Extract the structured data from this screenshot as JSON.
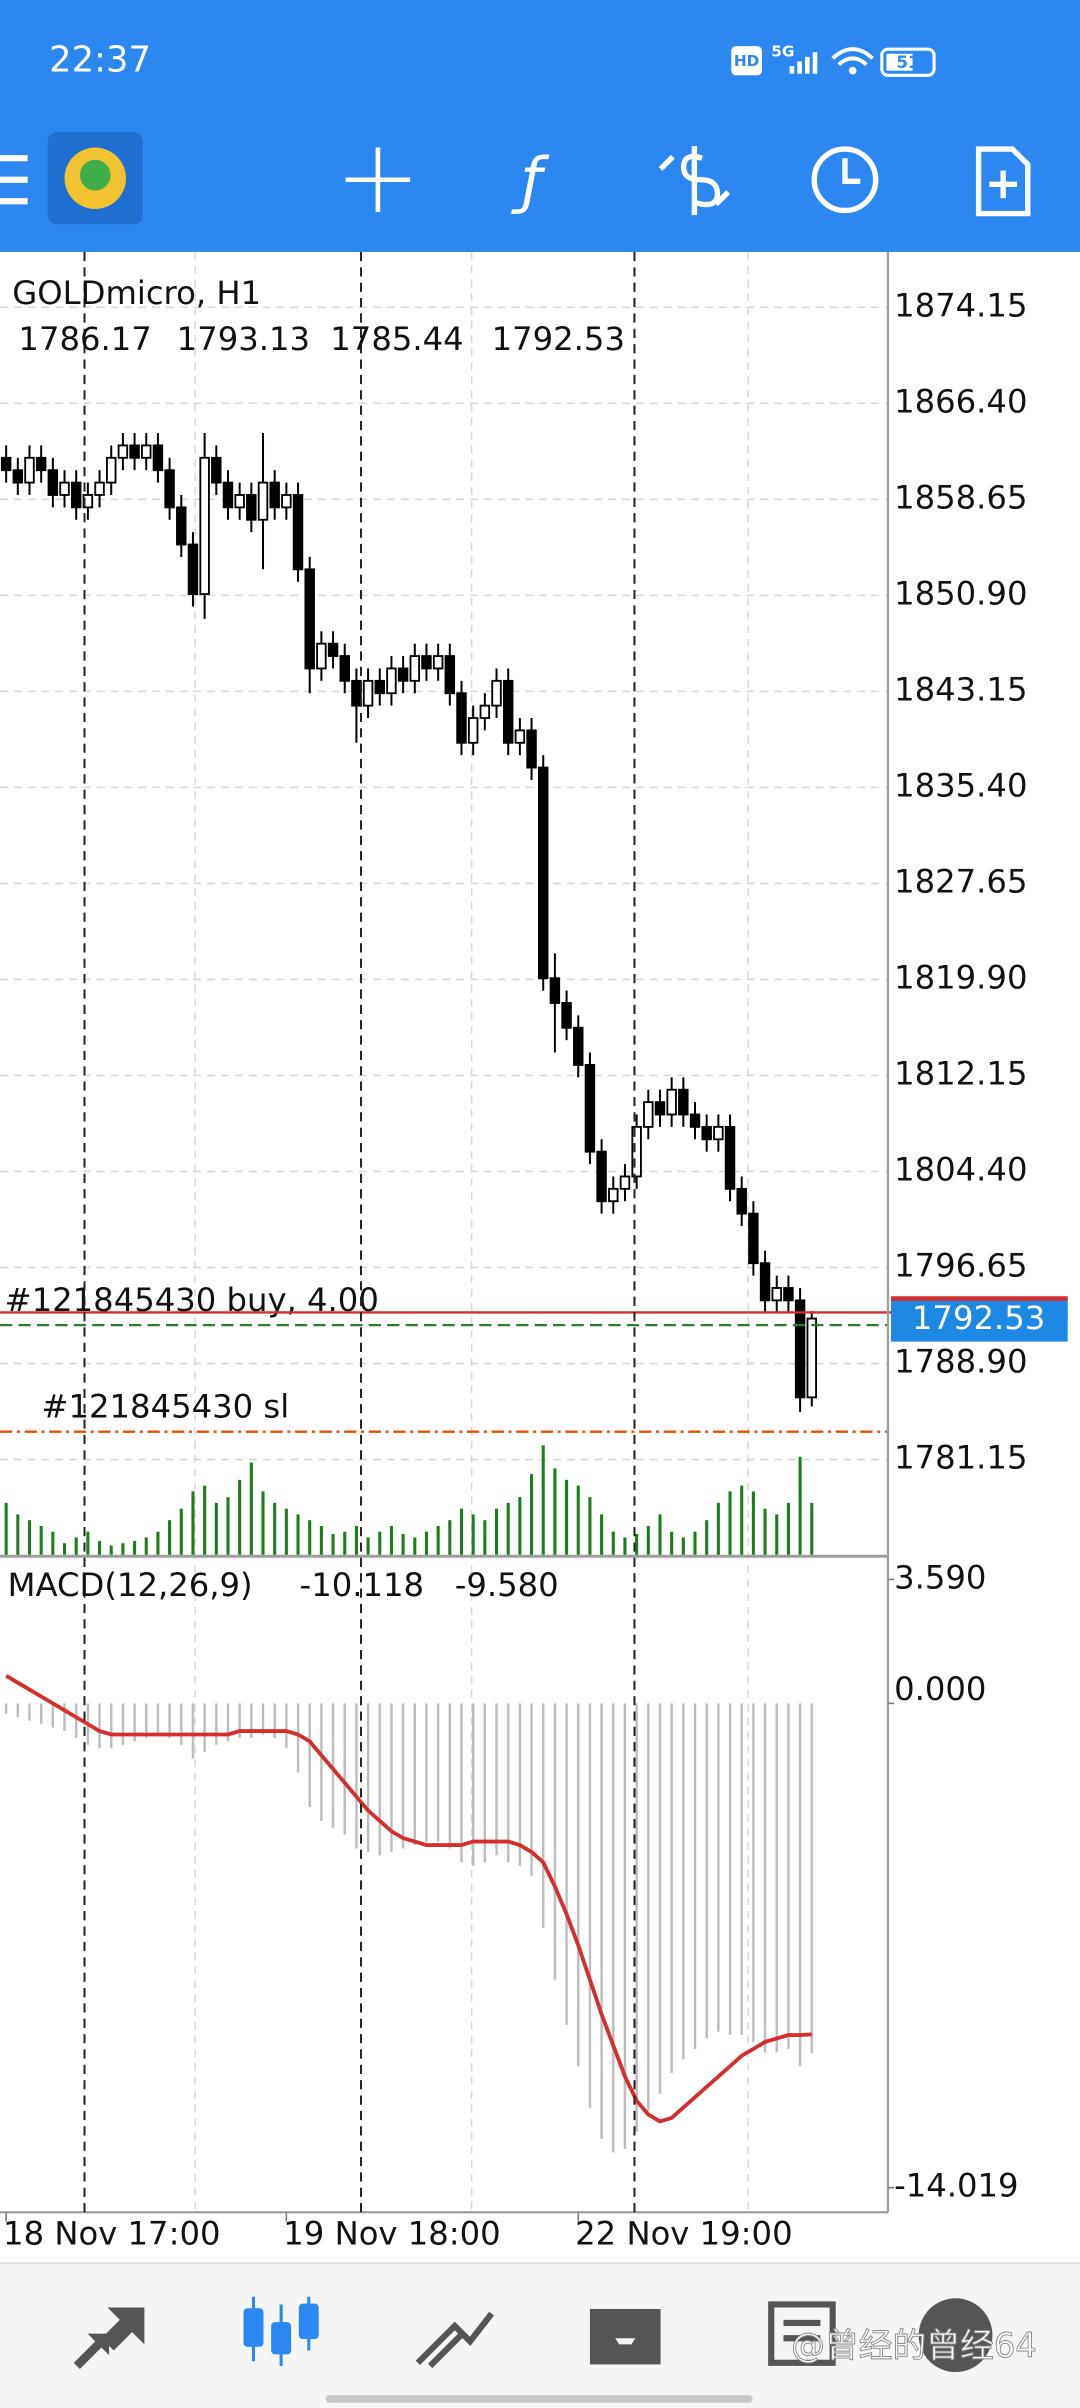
{
  "status_bar": {
    "time": "22:37",
    "icons": [
      "HD",
      "5G"
    ],
    "battery": "51"
  },
  "watermark": "@曾经的曾经64",
  "chart_data": [
    {
      "type": "candlestick",
      "title": "GOLDmicro, H1",
      "open": [
        1862,
        1861,
        1860,
        1862,
        1861,
        1859,
        1860,
        1858,
        1859,
        1860,
        1862,
        1863,
        1862,
        1863,
        1861,
        1858,
        1855,
        1851,
        1862,
        1860,
        1858,
        1859,
        1857,
        1860,
        1858,
        1859,
        1853,
        1845,
        1847,
        1846,
        1844,
        1842,
        1844,
        1843,
        1845,
        1844,
        1846,
        1845,
        1846,
        1843,
        1839,
        1841,
        1842,
        1844,
        1839,
        1840,
        1837,
        1820,
        1818,
        1816,
        1813,
        1806,
        1802,
        1803,
        1804,
        1808,
        1810,
        1809,
        1811,
        1809,
        1808,
        1807,
        1808,
        1803,
        1801,
        1797,
        1794,
        1795,
        1794,
        1786.17
      ],
      "high": [
        1863,
        1862,
        1863,
        1863,
        1862,
        1861,
        1861,
        1860,
        1861,
        1863,
        1864,
        1864,
        1864,
        1864,
        1862,
        1859,
        1856,
        1864,
        1863,
        1861,
        1860,
        1860,
        1864,
        1861,
        1860,
        1860,
        1854,
        1848,
        1848,
        1847,
        1845,
        1845,
        1845,
        1846,
        1846,
        1847,
        1847,
        1847,
        1847,
        1844,
        1842,
        1843,
        1845,
        1845,
        1841,
        1841,
        1838,
        1822,
        1819,
        1817,
        1814,
        1807,
        1804,
        1805,
        1809,
        1811,
        1811,
        1812,
        1812,
        1810,
        1809,
        1809,
        1809,
        1804,
        1802,
        1798,
        1796,
        1796,
        1795,
        1793.13
      ],
      "low": [
        1860,
        1859,
        1859,
        1860,
        1858,
        1858,
        1857,
        1857,
        1858,
        1859,
        1861,
        1861,
        1861,
        1860,
        1857,
        1854,
        1850,
        1849,
        1859,
        1857,
        1857,
        1856,
        1853,
        1857,
        1857,
        1852,
        1843,
        1844,
        1845,
        1843,
        1839,
        1841,
        1842,
        1842,
        1843,
        1843,
        1844,
        1844,
        1842,
        1838,
        1838,
        1840,
        1841,
        1838,
        1838,
        1836,
        1819,
        1814,
        1815,
        1812,
        1805,
        1801,
        1801,
        1802,
        1803,
        1807,
        1808,
        1808,
        1808,
        1807,
        1806,
        1806,
        1802,
        1800,
        1796,
        1793,
        1793,
        1793,
        1785,
        1785.44
      ],
      "close": [
        1861,
        1860,
        1862,
        1861,
        1859,
        1860,
        1858,
        1859,
        1860,
        1862,
        1863,
        1862,
        1863,
        1861,
        1858,
        1855,
        1851,
        1862,
        1860,
        1858,
        1859,
        1857,
        1860,
        1858,
        1859,
        1853,
        1845,
        1847,
        1846,
        1844,
        1842,
        1844,
        1843,
        1845,
        1844,
        1846,
        1845,
        1846,
        1843,
        1839,
        1841,
        1842,
        1844,
        1839,
        1840,
        1837,
        1820,
        1818,
        1816,
        1813,
        1806,
        1802,
        1803,
        1804,
        1808,
        1810,
        1809,
        1811,
        1809,
        1808,
        1807,
        1808,
        1803,
        1801,
        1797,
        1794,
        1795,
        1794,
        1786.17,
        1792.53
      ],
      "ylim": [
        1773.47,
        1878.49
      ],
      "yticks": [
        1874.15,
        {
          "value": 1866.4,
          "label": "1866.40"
        },
        1858.65,
        {
          "value": 1850.9,
          "label": "1850.90"
        },
        1843.15,
        {
          "value": 1835.4,
          "label": "1835.40"
        },
        1827.65,
        {
          "value": 1819.9,
          "label": "1819.90"
        },
        1812.15,
        {
          "value": 1804.4,
          "label": "1804.40"
        },
        1796.65,
        {
          "value": 1788.9,
          "label": "1788.90"
        },
        1781.15
      ],
      "xticks": [
        {
          "value": 0,
          "label": "18 Nov 17:00"
        },
        {
          "value": 24,
          "label": "19 Nov 18:00"
        },
        {
          "value": 49,
          "label": "22 Nov 19:00"
        }
      ],
      "grid": true,
      "volume": {
        "color": "#1b7d1b",
        "ylim": [
          0,
          100
        ],
        "values": [
          45,
          35,
          30,
          25,
          20,
          10,
          15,
          20,
          12,
          8,
          10,
          12,
          15,
          20,
          30,
          40,
          55,
          60,
          45,
          50,
          65,
          80,
          55,
          45,
          40,
          35,
          30,
          25,
          18,
          20,
          25,
          15,
          20,
          25,
          18,
          15,
          20,
          25,
          30,
          40,
          35,
          30,
          40,
          45,
          50,
          70,
          95,
          75,
          65,
          60,
          50,
          35,
          20,
          15,
          18,
          25,
          35,
          20,
          15,
          20,
          30,
          45,
          55,
          60,
          55,
          40,
          35,
          45,
          85,
          45
        ]
      },
      "orders": [
        {
          "label": "#121845430  buy, 4.00",
          "price": 1792.0,
          "color": "#2e7d32"
        },
        {
          "label": "#121845430  sl",
          "price": 1783.4,
          "color": "#e65100"
        }
      ],
      "bid_color": "#d32f2f"
    },
    {
      "type": "macd",
      "title": "MACD(12,26,9)",
      "ylim": [
        -14.73,
        4.17
      ],
      "yticks": [
        {
          "value": 3.59,
          "label": "3.590"
        },
        {
          "value": 0,
          "label": "0.000"
        },
        -14.019
      ],
      "histogram": {
        "color": "#bdbdbd",
        "values": [
          -0.3,
          -0.4,
          -0.5,
          -0.6,
          -0.7,
          -0.8,
          -1.0,
          -1.2,
          -1.3,
          -1.3,
          -1.2,
          -1.1,
          -1.0,
          -0.9,
          -1.0,
          -1.2,
          -1.6,
          -1.4,
          -1.2,
          -1.1,
          -1.0,
          -1.0,
          -0.9,
          -1.0,
          -1.3,
          -2.0,
          -3.0,
          -3.4,
          -3.6,
          -3.8,
          -4.2,
          -4.3,
          -4.4,
          -4.3,
          -4.2,
          -4.1,
          -4.0,
          -4.0,
          -4.2,
          -4.6,
          -4.7,
          -4.6,
          -4.4,
          -4.6,
          -4.7,
          -5.0,
          -6.5,
          -8.0,
          -9.3,
          -10.5,
          -11.7,
          -12.6,
          -13.0,
          -12.9,
          -12.4,
          -11.8,
          -11.3,
          -10.7,
          -10.3,
          -10.0,
          -9.7,
          -9.5,
          -9.6,
          -9.6,
          -9.8,
          -10.1,
          -10.1,
          -10.0,
          -10.5,
          -10.118
        ]
      },
      "signal": {
        "color": "#d32f2f",
        "last_label": "-9.580",
        "values": [
          0.8,
          0.6,
          0.4,
          0.2,
          0.0,
          -0.2,
          -0.4,
          -0.6,
          -0.8,
          -0.9,
          -0.9,
          -0.9,
          -0.9,
          -0.9,
          -0.9,
          -0.9,
          -0.9,
          -0.9,
          -0.9,
          -0.9,
          -0.8,
          -0.8,
          -0.8,
          -0.8,
          -0.8,
          -0.9,
          -1.1,
          -1.5,
          -1.9,
          -2.3,
          -2.7,
          -3.1,
          -3.4,
          -3.7,
          -3.9,
          -4.0,
          -4.1,
          -4.1,
          -4.1,
          -4.1,
          -4.0,
          -4.0,
          -4.0,
          -4.0,
          -4.1,
          -4.3,
          -4.6,
          -5.3,
          -6.1,
          -7.0,
          -8.0,
          -9.0,
          -9.9,
          -10.8,
          -11.5,
          -11.9,
          -12.1,
          -12.0,
          -11.7,
          -11.4,
          -11.1,
          -10.8,
          -10.5,
          -10.2,
          -10.0,
          -9.8,
          -9.7,
          -9.6,
          -9.6,
          -9.58
        ]
      }
    }
  ]
}
